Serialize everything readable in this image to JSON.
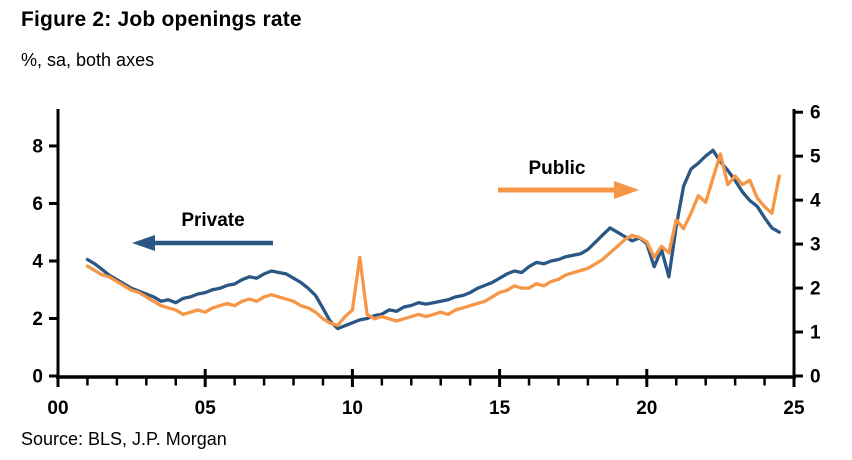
{
  "title": "Figure 2: Job openings rate",
  "subtitle": "%, sa, both axes",
  "source": "Source: BLS, J.P. Morgan",
  "colors": {
    "private": "#2A5783",
    "public": "#F79646",
    "axis": "#000000",
    "text": "#000000",
    "background": "#FFFFFF"
  },
  "annotations": {
    "private_label": "Private",
    "public_label": "Public"
  },
  "chart_data": {
    "type": "line",
    "title": "Figure 2: Job openings rate",
    "units": "%, sa, both axes",
    "x_start": 2001.0,
    "x_step": 0.25,
    "xlim": [
      2000,
      2025
    ],
    "x_tick_values": [
      2000,
      2005,
      2010,
      2015,
      2020,
      2025
    ],
    "x_tick_labels": [
      "00",
      "05",
      "10",
      "15",
      "20",
      "25"
    ],
    "x_minor_tick_step": 1,
    "grid": false,
    "left_axis": {
      "series": "Private",
      "ticks": [
        0,
        2,
        4,
        6,
        8
      ],
      "ylim": [
        0,
        9.25
      ]
    },
    "right_axis": {
      "series": "Public",
      "ticks": [
        0,
        1,
        2,
        3,
        4,
        5,
        6
      ],
      "ylim": [
        0,
        6.05
      ]
    },
    "series": [
      {
        "name": "Private",
        "axis": "left",
        "color": "#2A5783",
        "values": [
          4.05,
          3.9,
          3.7,
          3.5,
          3.35,
          3.2,
          3.05,
          2.95,
          2.85,
          2.75,
          2.6,
          2.65,
          2.55,
          2.7,
          2.75,
          2.85,
          2.9,
          3.0,
          3.05,
          3.15,
          3.2,
          3.35,
          3.45,
          3.4,
          3.55,
          3.65,
          3.6,
          3.55,
          3.4,
          3.25,
          3.05,
          2.8,
          2.35,
          1.9,
          1.65,
          1.75,
          1.85,
          1.95,
          2.0,
          2.1,
          2.15,
          2.3,
          2.25,
          2.4,
          2.45,
          2.55,
          2.5,
          2.55,
          2.6,
          2.65,
          2.75,
          2.8,
          2.9,
          3.05,
          3.15,
          3.25,
          3.4,
          3.55,
          3.65,
          3.6,
          3.8,
          3.95,
          3.9,
          4.0,
          4.05,
          4.15,
          4.2,
          4.25,
          4.4,
          4.65,
          4.9,
          5.15,
          5.0,
          4.85,
          4.7,
          4.8,
          4.6,
          3.8,
          4.4,
          3.45,
          5.2,
          6.6,
          7.2,
          7.4,
          7.65,
          7.85,
          7.45,
          7.15,
          6.8,
          6.4,
          6.1,
          5.9,
          5.5,
          5.15,
          5.0
        ]
      },
      {
        "name": "Public",
        "axis": "right",
        "color": "#F79646",
        "values": [
          2.5,
          2.4,
          2.3,
          2.25,
          2.15,
          2.05,
          1.95,
          1.9,
          1.8,
          1.7,
          1.6,
          1.55,
          1.5,
          1.4,
          1.45,
          1.5,
          1.45,
          1.55,
          1.6,
          1.65,
          1.6,
          1.7,
          1.75,
          1.7,
          1.8,
          1.85,
          1.8,
          1.75,
          1.7,
          1.6,
          1.55,
          1.45,
          1.3,
          1.2,
          1.15,
          1.35,
          1.5,
          2.7,
          1.4,
          1.3,
          1.35,
          1.3,
          1.25,
          1.3,
          1.35,
          1.4,
          1.35,
          1.4,
          1.45,
          1.4,
          1.5,
          1.55,
          1.6,
          1.65,
          1.7,
          1.8,
          1.9,
          1.95,
          2.05,
          2.0,
          2.0,
          2.1,
          2.05,
          2.15,
          2.2,
          2.3,
          2.35,
          2.4,
          2.45,
          2.55,
          2.65,
          2.8,
          2.95,
          3.1,
          3.2,
          3.15,
          3.05,
          2.7,
          2.95,
          2.8,
          3.55,
          3.35,
          3.7,
          4.1,
          3.95,
          4.5,
          5.05,
          4.35,
          4.55,
          4.35,
          4.45,
          4.05,
          3.85,
          3.7,
          4.55
        ]
      }
    ]
  }
}
